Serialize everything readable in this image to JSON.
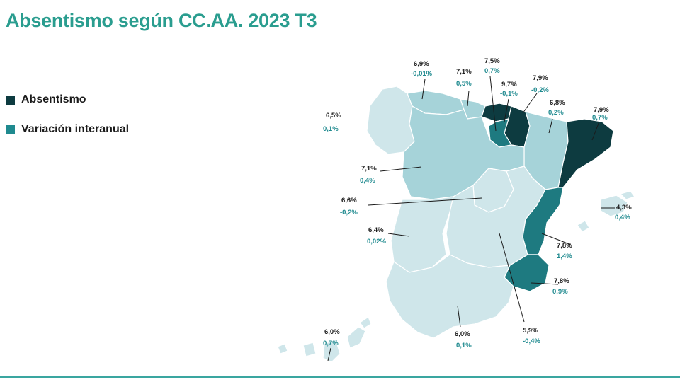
{
  "title": "Absentismo según CC.AA. 2023 T3",
  "colors": {
    "title": "#2a9d8f",
    "absentismo": "#0d3b40",
    "variacion": "#1f8a8f",
    "rule": "#3aa6a0",
    "region_light": "#cfe6ea",
    "region_mid": "#a6d3d9",
    "region_mid2": "#85c2ca",
    "region_dark": "#1e7a80",
    "region_darkest": "#0d3b40"
  },
  "legend": [
    {
      "label": "Absentismo",
      "color_key": "absentismo",
      "icon": "square-icon"
    },
    {
      "label": "Variación interanual",
      "color_key": "variacion",
      "icon": "square-icon"
    }
  ],
  "regions": [
    {
      "name": "galicia",
      "absentismo": "6,5%",
      "variacion": "0,1%"
    },
    {
      "name": "asturias",
      "absentismo": "6,9%",
      "variacion": "-0,01%"
    },
    {
      "name": "cantabria",
      "absentismo": "7,1%",
      "variacion": "0,5%"
    },
    {
      "name": "pais-vasco",
      "absentismo": "7,5%",
      "variacion": "0,7%"
    },
    {
      "name": "la-rioja",
      "absentismo": "9,7%",
      "variacion": "-0,1%"
    },
    {
      "name": "navarra",
      "absentismo": "7,9%",
      "variacion": "-0,2%"
    },
    {
      "name": "aragon",
      "absentismo": "6,8%",
      "variacion": "0,2%"
    },
    {
      "name": "cataluna",
      "absentismo": "7,9%",
      "variacion": "0,7%"
    },
    {
      "name": "castilla-leon",
      "absentismo": "7,1%",
      "variacion": "0,4%"
    },
    {
      "name": "madrid",
      "absentismo": "6,6%",
      "variacion": "-0,2%"
    },
    {
      "name": "extremadura",
      "absentismo": "6,4%",
      "variacion": "0,02%"
    },
    {
      "name": "baleares",
      "absentismo": "4,3%",
      "variacion": "0,4%"
    },
    {
      "name": "valencia",
      "absentismo": "7,8%",
      "variacion": "1,4%"
    },
    {
      "name": "murcia",
      "absentismo": "7,8%",
      "variacion": "0,9%"
    },
    {
      "name": "castilla-la-mancha",
      "absentismo": "5,9%",
      "variacion": "-0,4%"
    },
    {
      "name": "andalucia",
      "absentismo": "6,0%",
      "variacion": "0,1%"
    },
    {
      "name": "canarias",
      "absentismo": "6,0%",
      "variacion": "0,7%"
    }
  ]
}
